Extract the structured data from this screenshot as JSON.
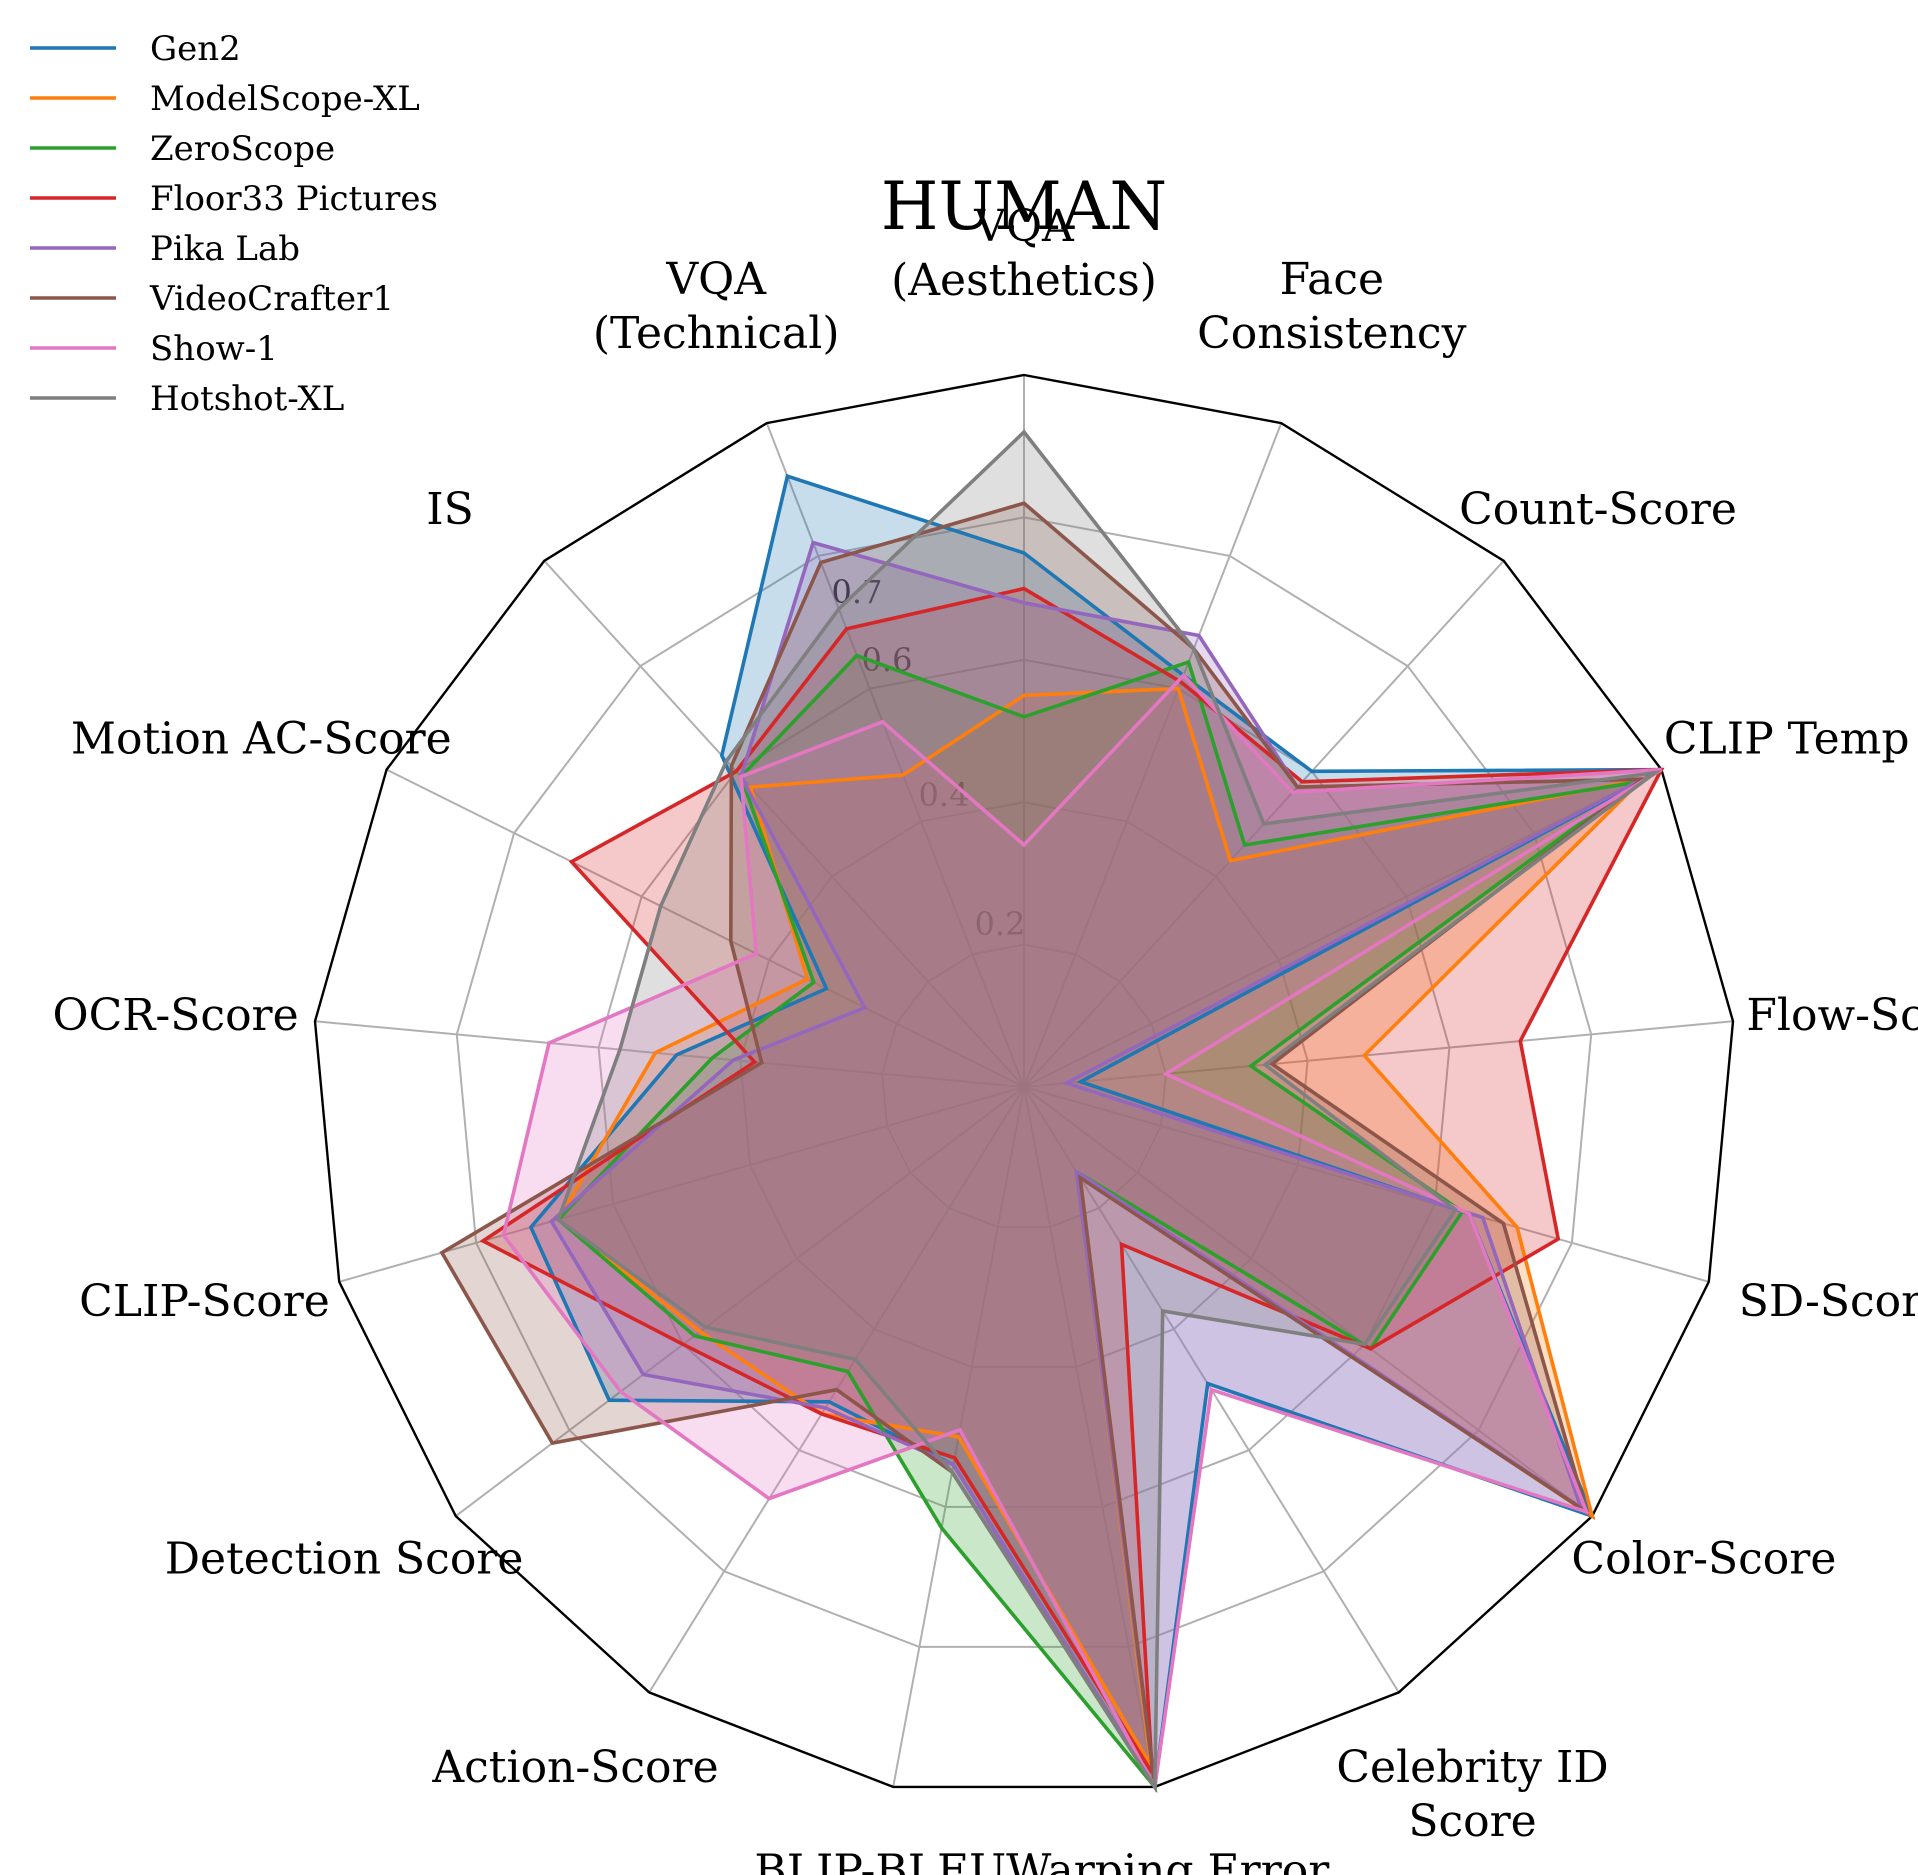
{
  "chart_data": {
    "type": "radar",
    "title": "HUMAN",
    "axes": [
      [
        "VQA",
        "(Aesthetics)"
      ],
      [
        "Face",
        "Consistency"
      ],
      [
        "Count-Score"
      ],
      [
        "CLIP Temp"
      ],
      [
        "Flow-Score"
      ],
      [
        "SD-Score"
      ],
      [
        "Color-Score"
      ],
      [
        "Celebrity ID",
        "Score"
      ],
      [
        "Warping Error"
      ],
      [
        "BLIP-BLEU"
      ],
      [
        "Action-Score"
      ],
      [
        "Detection Score"
      ],
      [
        "CLIP-Score"
      ],
      [
        "OCR-Score"
      ],
      [
        "Motion AC-Score"
      ],
      [
        "IS"
      ],
      [
        "VQA",
        "(Technical)"
      ]
    ],
    "radial_ticks": [
      {
        "value": 0.2,
        "label": "0.2"
      },
      {
        "value": 0.4,
        "label": "0.4"
      },
      {
        "value": 0.6,
        "label": "0.6"
      },
      {
        "value": 0.7,
        "label": "0.7"
      }
    ],
    "grid": true,
    "legend_position": "top-left",
    "series": [
      {
        "name": "Gen2",
        "color": "#1f77b4",
        "values": [
          0.75,
          0.62,
          0.6,
          1.0,
          0.08,
          0.65,
          1.0,
          0.49,
          1.0,
          0.54,
          0.52,
          0.73,
          0.72,
          0.49,
          0.31,
          0.63,
          0.92
        ]
      },
      {
        "name": "ModelScope-XL",
        "color": "#ff7f0e",
        "values": [
          0.55,
          0.6,
          0.43,
          0.97,
          0.48,
          0.72,
          1.0,
          0.14,
          0.97,
          0.5,
          0.54,
          0.57,
          0.68,
          0.52,
          0.34,
          0.57,
          0.47
        ]
      },
      {
        "name": "ZeroScope",
        "color": "#2ca02c",
        "values": [
          0.52,
          0.64,
          0.46,
          0.96,
          0.32,
          0.64,
          0.61,
          0.14,
          1.0,
          0.63,
          0.47,
          0.58,
          0.68,
          0.44,
          0.33,
          0.59,
          0.65
        ]
      },
      {
        "name": "Floor33 Pictures",
        "color": "#d62728",
        "values": [
          0.7,
          0.61,
          0.58,
          1.0,
          0.7,
          0.78,
          0.61,
          0.26,
          0.98,
          0.53,
          0.54,
          0.6,
          0.79,
          0.38,
          0.71,
          0.6,
          0.69
        ]
      },
      {
        "name": "Pika Lab",
        "color": "#9467bd",
        "values": [
          0.68,
          0.68,
          0.57,
          0.97,
          0.06,
          0.67,
          0.98,
          0.14,
          1.0,
          0.54,
          0.53,
          0.67,
          0.69,
          0.41,
          0.25,
          0.59,
          0.82
        ]
      },
      {
        "name": "VideoCrafter1",
        "color": "#8c564b",
        "values": [
          0.82,
          0.66,
          0.57,
          0.97,
          0.35,
          0.7,
          0.99,
          0.15,
          1.0,
          0.55,
          0.5,
          0.83,
          0.85,
          0.37,
          0.46,
          0.61,
          0.79
        ]
      },
      {
        "name": "Show-1",
        "color": "#e377c2",
        "values": [
          0.34,
          0.62,
          0.56,
          1.0,
          0.2,
          0.65,
          0.99,
          0.5,
          1.0,
          0.49,
          0.68,
          0.71,
          0.76,
          0.67,
          0.42,
          0.59,
          0.55
        ]
      },
      {
        "name": "Hotshot-XL",
        "color": "#7f7f7f",
        "values": [
          0.92,
          0.66,
          0.5,
          0.99,
          0.34,
          0.63,
          0.6,
          0.37,
          1.0,
          0.55,
          0.45,
          0.56,
          0.68,
          0.57,
          0.57,
          0.62,
          0.72
        ]
      }
    ]
  }
}
